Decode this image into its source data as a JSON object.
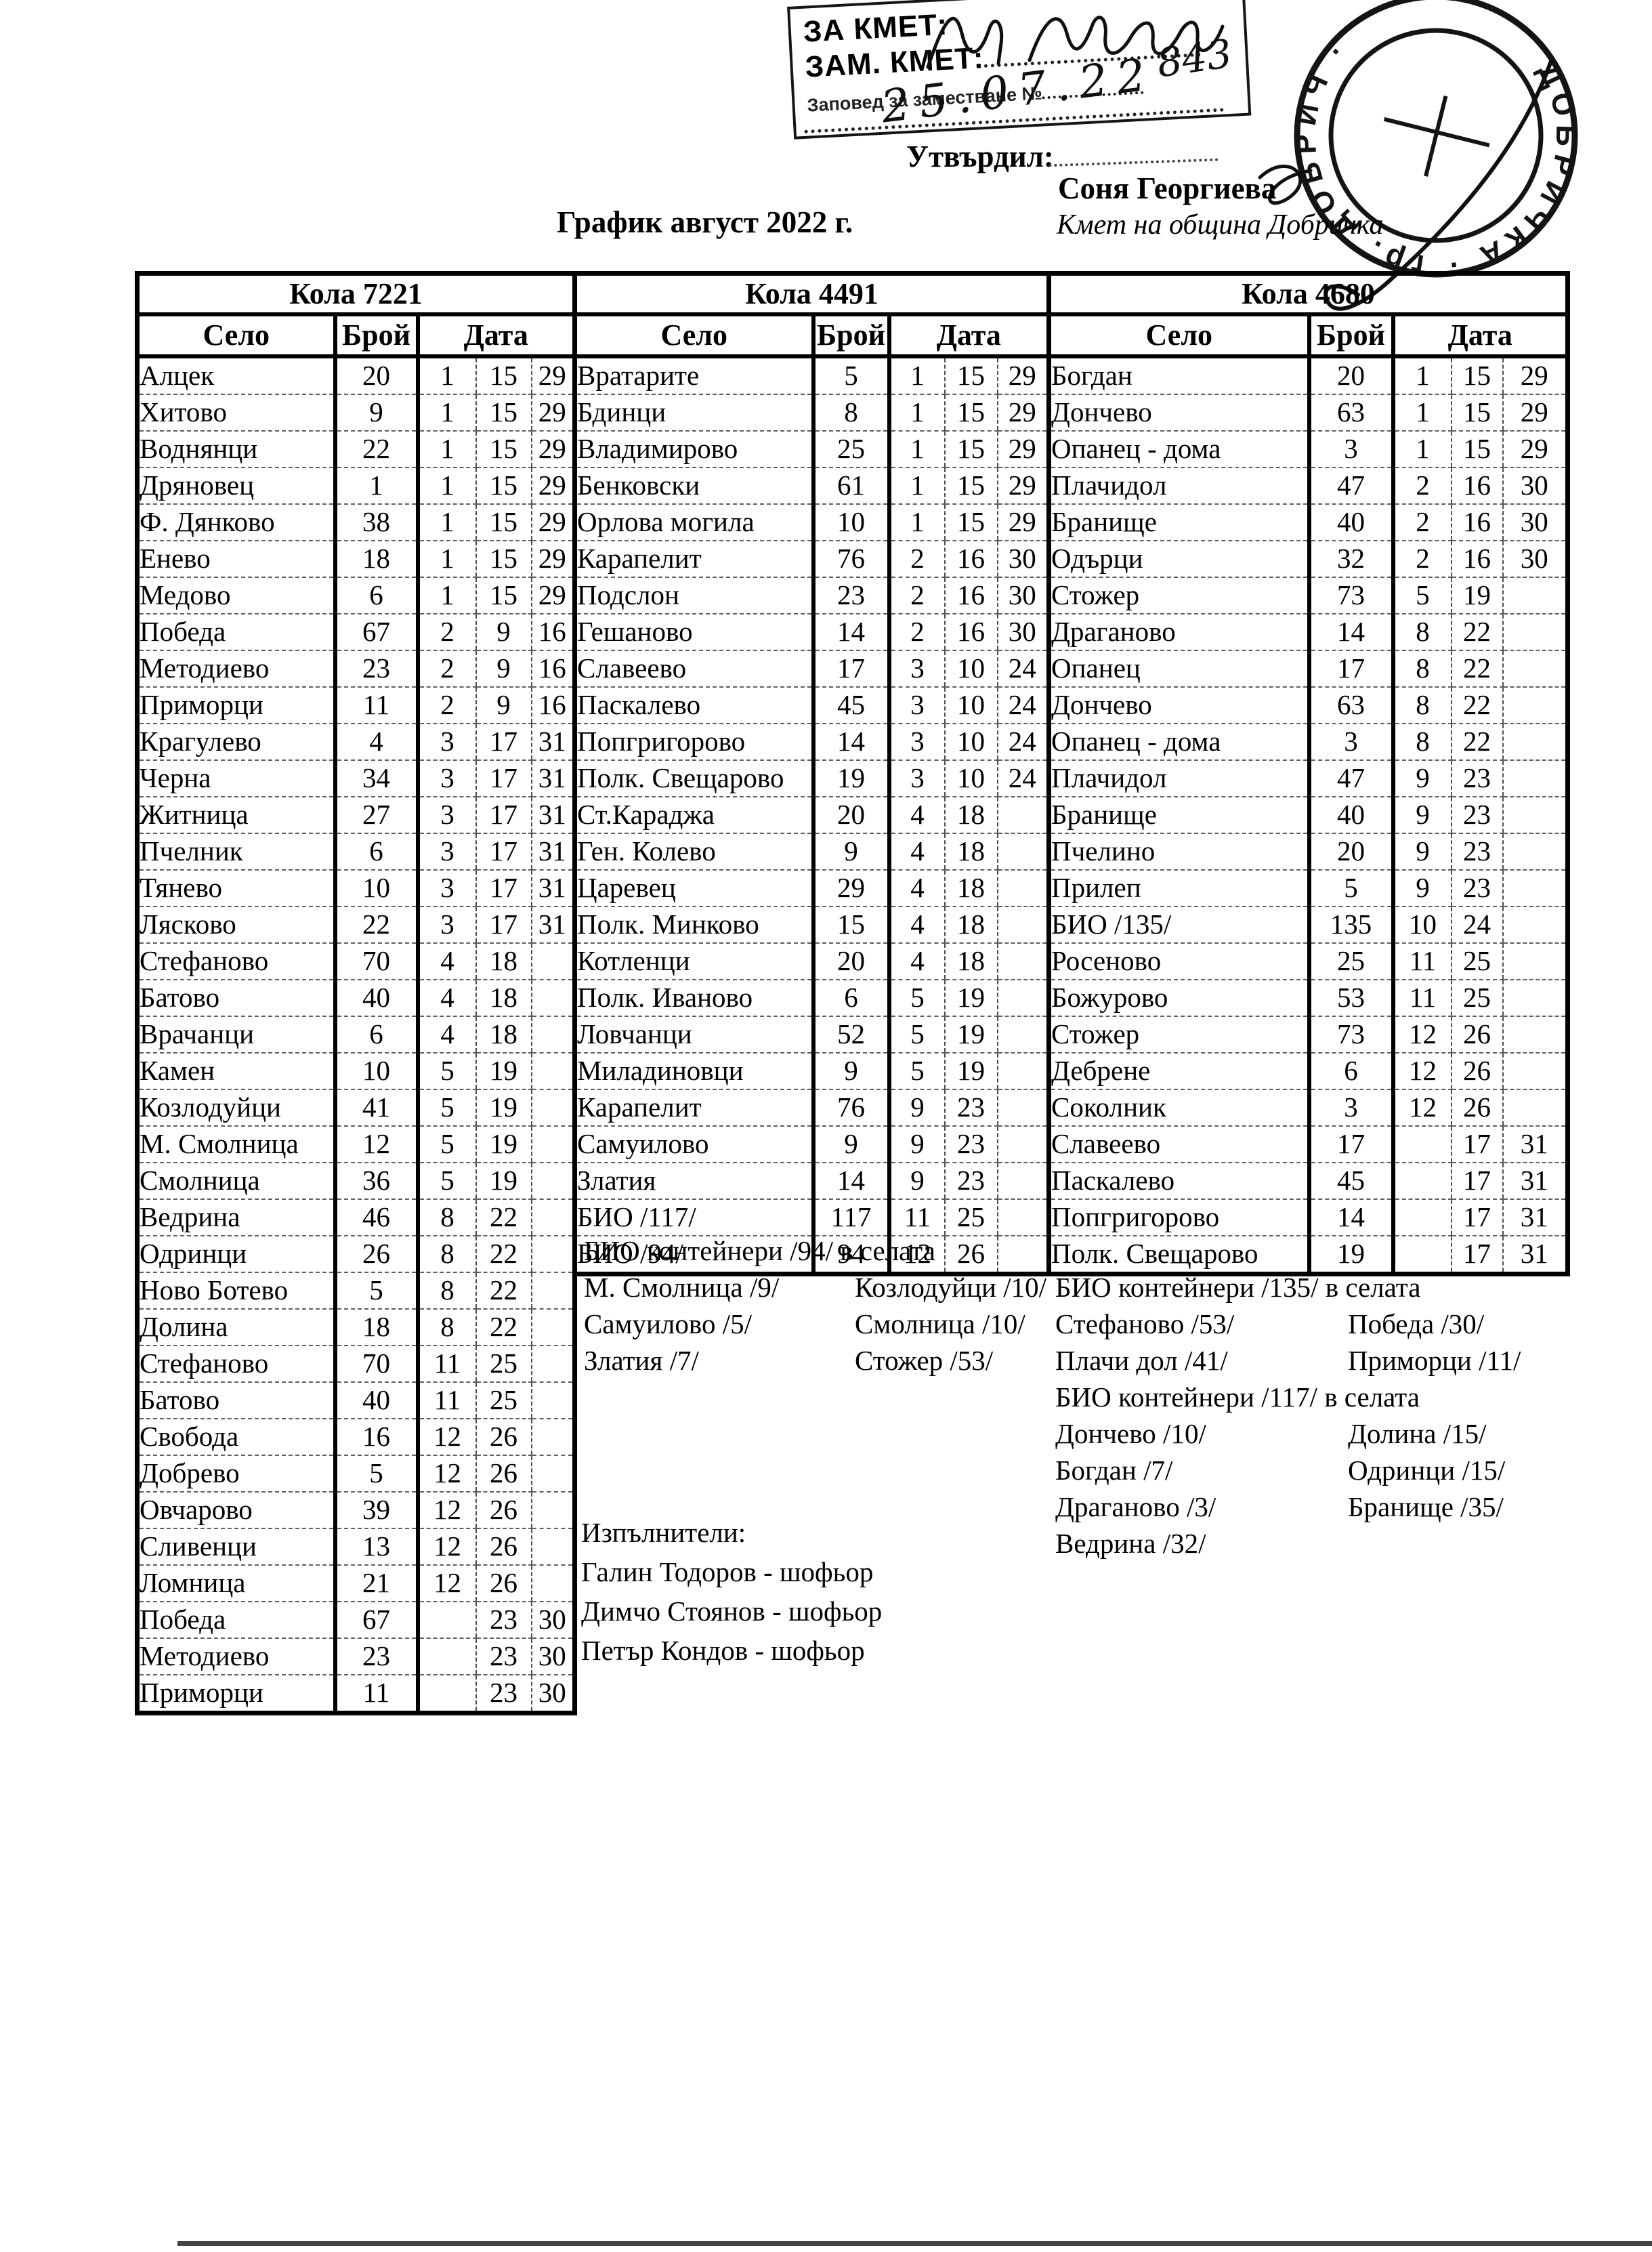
{
  "header": {
    "title": "График август 2022 г.",
    "approved_label": "Утвърдил:",
    "approver_name": "Соня Георгиева",
    "approver_title": "Кмет  на община Добричка",
    "stamp_box": {
      "line1": "ЗА КМЕТ:",
      "line2": "ЗАМ. КМЕТ:",
      "line3": "Заповед за заместване №",
      "handwritten_number": "843",
      "handwritten_date": "25.07.22"
    },
    "round_stamp": {
      "ring_text": "ДОБРИЧКА · гр. ДОБРИЧ ·"
    }
  },
  "tables": [
    {
      "car": "Кола 7221",
      "columns": [
        "Село",
        "Брой",
        "Дата"
      ],
      "rows": [
        [
          "Алцек",
          "20",
          "1",
          "15",
          "29"
        ],
        [
          "Хитово",
          "9",
          "1",
          "15",
          "29"
        ],
        [
          "Воднянци",
          "22",
          "1",
          "15",
          "29"
        ],
        [
          "Дряновец",
          "1",
          "1",
          "15",
          "29"
        ],
        [
          "Ф. Дянково",
          "38",
          "1",
          "15",
          "29"
        ],
        [
          "Енево",
          "18",
          "1",
          "15",
          "29"
        ],
        [
          "Медово",
          "6",
          "1",
          "15",
          "29"
        ],
        [
          "Победа",
          "67",
          "2",
          "9",
          "16"
        ],
        [
          "Методиево",
          "23",
          "2",
          "9",
          "16"
        ],
        [
          "Приморци",
          "11",
          "2",
          "9",
          "16"
        ],
        [
          "Крагулево",
          "4",
          "3",
          "17",
          "31"
        ],
        [
          "Черна",
          "34",
          "3",
          "17",
          "31"
        ],
        [
          "Житница",
          "27",
          "3",
          "17",
          "31"
        ],
        [
          "Пчелник",
          "6",
          "3",
          "17",
          "31"
        ],
        [
          "Тянево",
          "10",
          "3",
          "17",
          "31"
        ],
        [
          "Лясково",
          "22",
          "3",
          "17",
          "31"
        ],
        [
          "Стефаново",
          "70",
          "4",
          "18",
          ""
        ],
        [
          "Батово",
          "40",
          "4",
          "18",
          ""
        ],
        [
          "Врачанци",
          "6",
          "4",
          "18",
          ""
        ],
        [
          "Камен",
          "10",
          "5",
          "19",
          ""
        ],
        [
          "Козлодуйци",
          "41",
          "5",
          "19",
          ""
        ],
        [
          "М. Смолница",
          "12",
          "5",
          "19",
          ""
        ],
        [
          "Смолница",
          "36",
          "5",
          "19",
          ""
        ],
        [
          "Ведрина",
          "46",
          "8",
          "22",
          ""
        ],
        [
          "Одринци",
          "26",
          "8",
          "22",
          ""
        ],
        [
          "Ново Ботево",
          "5",
          "8",
          "22",
          ""
        ],
        [
          "Долина",
          "18",
          "8",
          "22",
          ""
        ],
        [
          "Стефаново",
          "70",
          "11",
          "25",
          ""
        ],
        [
          "Батово",
          "40",
          "11",
          "25",
          ""
        ],
        [
          "Свобода",
          "16",
          "12",
          "26",
          ""
        ],
        [
          "Добрево",
          "5",
          "12",
          "26",
          ""
        ],
        [
          "Овчарово",
          "39",
          "12",
          "26",
          ""
        ],
        [
          "Сливенци",
          "13",
          "12",
          "26",
          ""
        ],
        [
          "Ломница",
          "21",
          "12",
          "26",
          ""
        ],
        [
          "Победа",
          "67",
          "",
          "23",
          "30"
        ],
        [
          "Методиево",
          "23",
          "",
          "23",
          "30"
        ],
        [
          "Приморци",
          "11",
          "",
          "23",
          "30"
        ]
      ]
    },
    {
      "car": "Кола 4491",
      "columns": [
        "Село",
        "Брой",
        "Дата"
      ],
      "rows": [
        [
          "Вратарите",
          "5",
          "1",
          "15",
          "29"
        ],
        [
          "Бдинци",
          "8",
          "1",
          "15",
          "29"
        ],
        [
          "Владимирово",
          "25",
          "1",
          "15",
          "29"
        ],
        [
          "Бенковски",
          "61",
          "1",
          "15",
          "29"
        ],
        [
          "Орлова могила",
          "10",
          "1",
          "15",
          "29"
        ],
        [
          "Карапелит",
          "76",
          "2",
          "16",
          "30"
        ],
        [
          "Подслон",
          "23",
          "2",
          "16",
          "30"
        ],
        [
          "Гешаново",
          "14",
          "2",
          "16",
          "30"
        ],
        [
          "Славеево",
          "17",
          "3",
          "10",
          "24"
        ],
        [
          "Паскалево",
          "45",
          "3",
          "10",
          "24"
        ],
        [
          "Попгригорово",
          "14",
          "3",
          "10",
          "24"
        ],
        [
          "Полк. Свещарово",
          "19",
          "3",
          "10",
          "24"
        ],
        [
          "Ст.Караджа",
          "20",
          "4",
          "18",
          ""
        ],
        [
          "Ген. Колево",
          "9",
          "4",
          "18",
          ""
        ],
        [
          "Царевец",
          "29",
          "4",
          "18",
          ""
        ],
        [
          "Полк. Минково",
          "15",
          "4",
          "18",
          ""
        ],
        [
          "Котленци",
          "20",
          "4",
          "18",
          ""
        ],
        [
          "Полк. Иваново",
          "6",
          "5",
          "19",
          ""
        ],
        [
          "Ловчанци",
          "52",
          "5",
          "19",
          ""
        ],
        [
          "Миладиновци",
          "9",
          "5",
          "19",
          ""
        ],
        [
          "Карапелит",
          "76",
          "9",
          "23",
          ""
        ],
        [
          "Самуилово",
          "9",
          "9",
          "23",
          ""
        ],
        [
          "Златия",
          "14",
          "9",
          "23",
          ""
        ],
        [
          "БИО /117/",
          "117",
          "11",
          "25",
          ""
        ],
        [
          "БИО /94/",
          "94",
          "12",
          "26",
          ""
        ]
      ]
    },
    {
      "car": "Кола 4680",
      "columns": [
        "Село",
        "Брой",
        "Дата"
      ],
      "rows": [
        [
          "Богдан",
          "20",
          "1",
          "15",
          "29"
        ],
        [
          "Дончево",
          "63",
          "1",
          "15",
          "29"
        ],
        [
          "Опанец - дома",
          "3",
          "1",
          "15",
          "29"
        ],
        [
          "Плачидол",
          "47",
          "2",
          "16",
          "30"
        ],
        [
          "Бранище",
          "40",
          "2",
          "16",
          "30"
        ],
        [
          "Одърци",
          "32",
          "2",
          "16",
          "30"
        ],
        [
          "Стожер",
          "73",
          "5",
          "19",
          ""
        ],
        [
          "Драганово",
          "14",
          "8",
          "22",
          ""
        ],
        [
          "Опанец",
          "17",
          "8",
          "22",
          ""
        ],
        [
          "Дончево",
          "63",
          "8",
          "22",
          ""
        ],
        [
          "Опанец - дома",
          "3",
          "8",
          "22",
          ""
        ],
        [
          "Плачидол",
          "47",
          "9",
          "23",
          ""
        ],
        [
          "Бранище",
          "40",
          "9",
          "23",
          ""
        ],
        [
          "Пчелино",
          "20",
          "9",
          "23",
          ""
        ],
        [
          "Прилеп",
          "5",
          "9",
          "23",
          ""
        ],
        [
          "БИО /135/",
          "135",
          "10",
          "24",
          ""
        ],
        [
          "Росеново",
          "25",
          "11",
          "25",
          ""
        ],
        [
          "Божурово",
          "53",
          "11",
          "25",
          ""
        ],
        [
          "Стожер",
          "73",
          "12",
          "26",
          ""
        ],
        [
          "Дебрене",
          "6",
          "12",
          "26",
          ""
        ],
        [
          "Соколник",
          "3",
          "12",
          "26",
          ""
        ],
        [
          "Славеево",
          "17",
          "",
          "17",
          "31"
        ],
        [
          "Паскалево",
          "45",
          "",
          "17",
          "31"
        ],
        [
          "Попгригорово",
          "14",
          "",
          "17",
          "31"
        ],
        [
          "Полк. Свещарово",
          "19",
          "",
          "17",
          "31"
        ]
      ]
    }
  ],
  "notes_mid": {
    "title": "БИО контейнери /94/ в селата",
    "rows": [
      [
        "М. Смолница /9/",
        "Козлодуйци /10/"
      ],
      [
        "Самуилово /5/",
        "Смолница /10/"
      ],
      [
        "Златия /7/",
        "Стожер /53/"
      ]
    ]
  },
  "notes_right": {
    "blocks": [
      {
        "title": "БИО контейнери /135/ в селата",
        "rows": [
          [
            "Стефаново /53/",
            "Победа /30/"
          ],
          [
            "Плачи дол /41/",
            "Приморци /11/"
          ]
        ]
      },
      {
        "title": "БИО контейнери /117/ в селата",
        "rows": [
          [
            "Дончево /10/",
            "Долина /15/"
          ],
          [
            "Богдан /7/",
            "Одринци /15/"
          ],
          [
            "Драганово /3/",
            "Бранище /35/"
          ],
          [
            "Ведрина /32/",
            ""
          ]
        ]
      }
    ]
  },
  "executors": {
    "label": "Изпълнители:",
    "items": [
      "Галин Тодоров - шофьор",
      "Димчо Стоянов - шофьор",
      "Петър Кондов - шофьор"
    ]
  }
}
